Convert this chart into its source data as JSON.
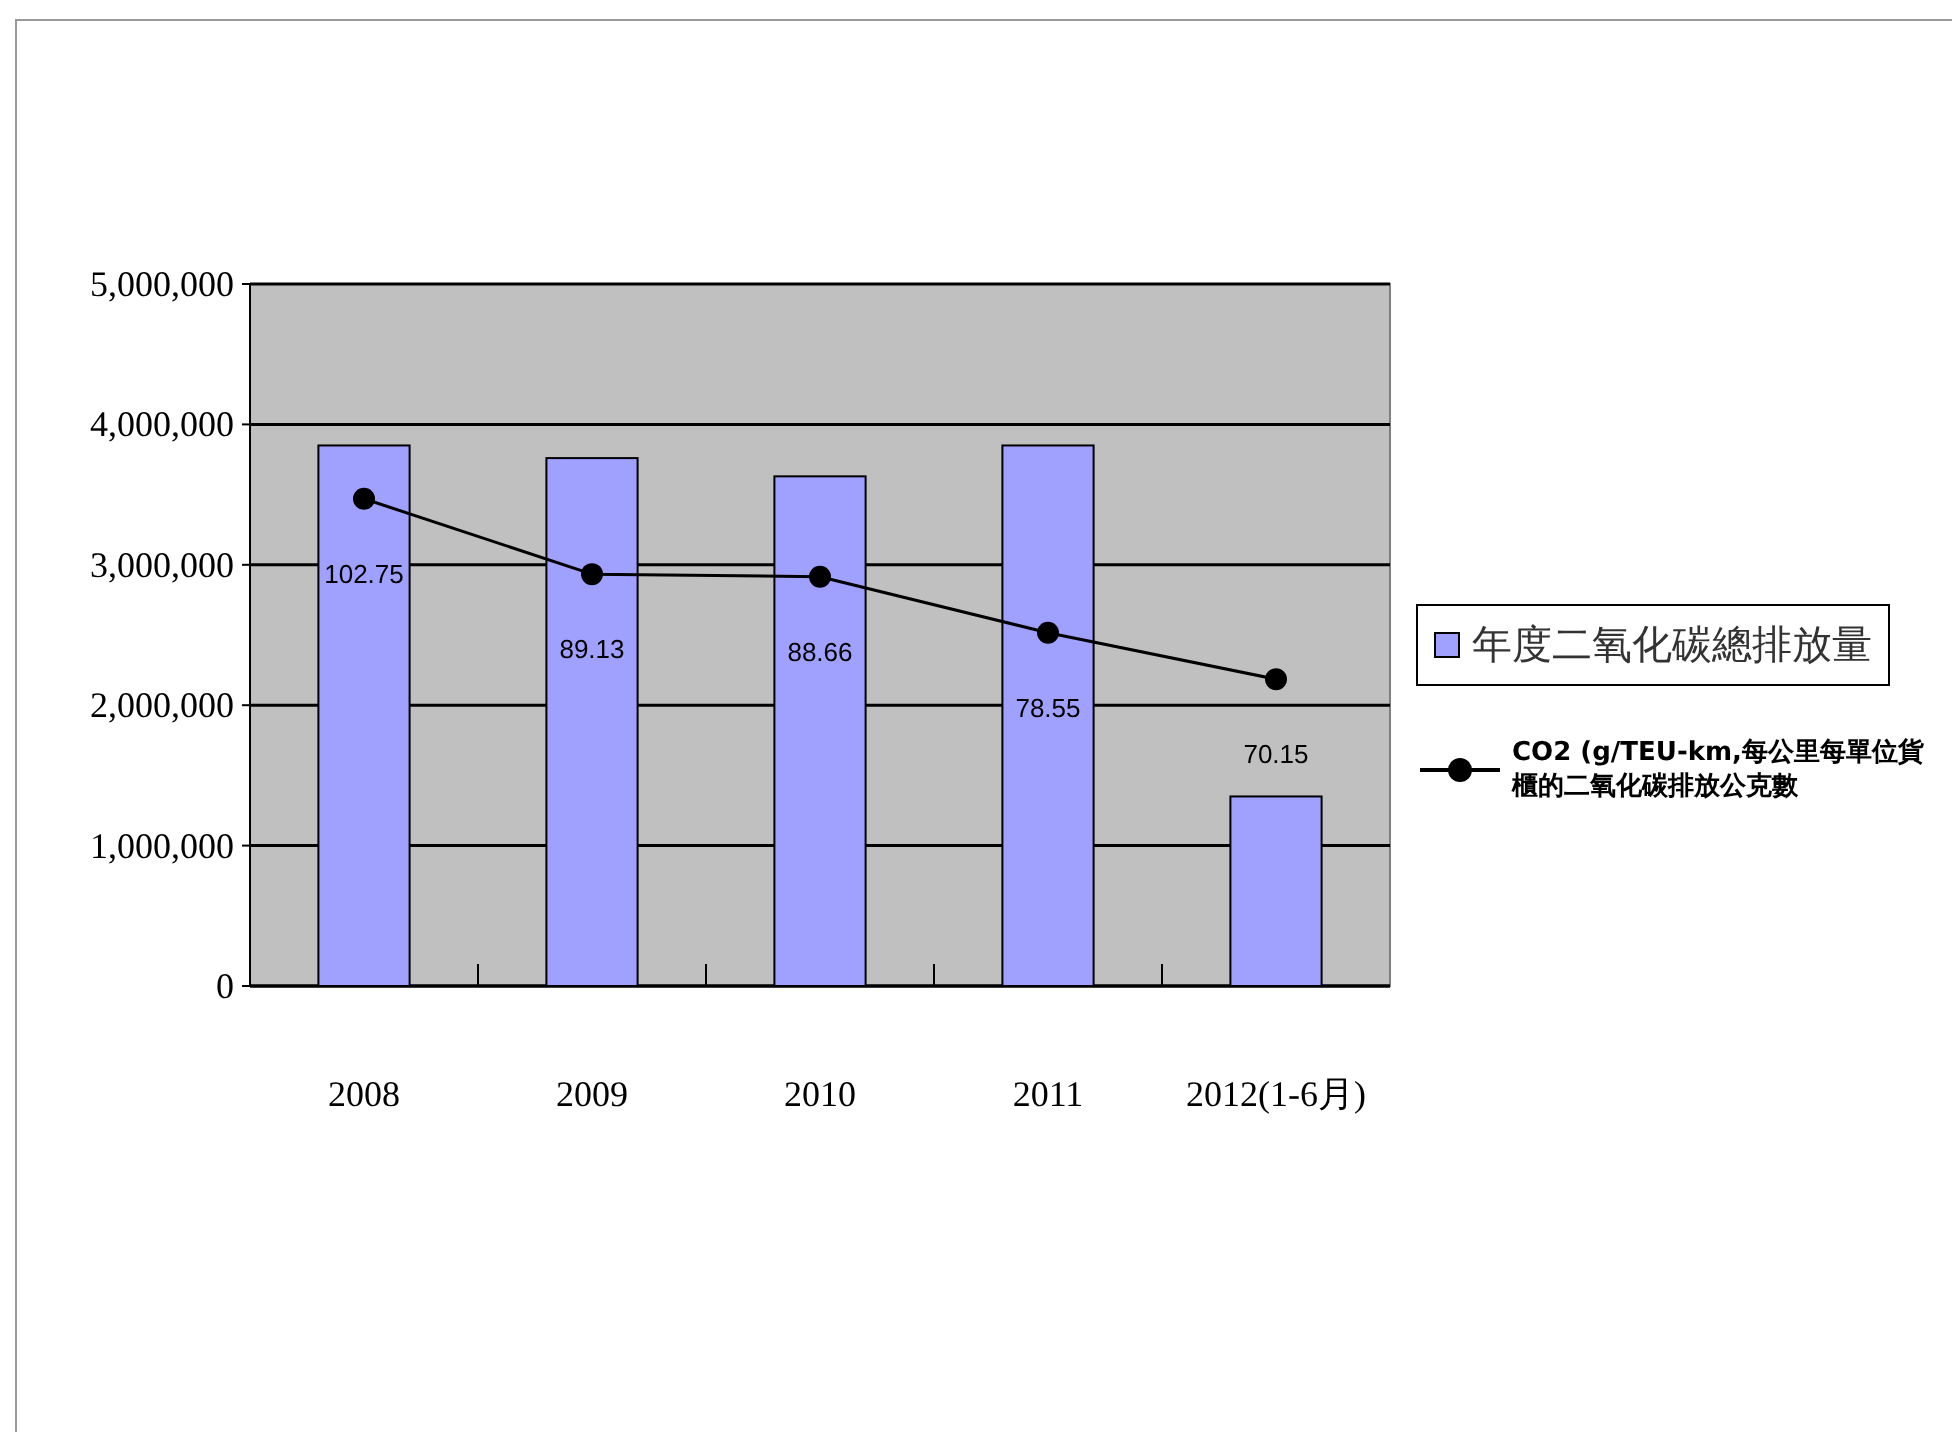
{
  "chart_data": {
    "type": "bar",
    "categories": [
      "2008",
      "2009",
      "2010",
      "2011",
      "2012(1-6月)"
    ],
    "series": [
      {
        "name": "年度二氧化碳總排放量",
        "color": "#a0a0ff",
        "values": [
          3850000,
          3760000,
          3630000,
          3850000,
          1350000
        ]
      },
      {
        "name": "CO2 (g/TEU-km,每公里每單位貨櫃的二氧化碳排放公克數",
        "type": "line",
        "axis": "y2",
        "color": "#000000",
        "marker": "circle",
        "data_labels": true,
        "values": [
          102.75,
          89.13,
          88.66,
          78.55,
          70.15
        ]
      }
    ],
    "ylim": [
      0,
      5000000
    ],
    "yticks": [
      {
        "value": 0,
        "label": "0"
      },
      {
        "value": 1000000,
        "label": "1,000,000"
      },
      {
        "value": 2000000,
        "label": "2,000,000"
      },
      {
        "value": 3000000,
        "label": "3,000,000"
      },
      {
        "value": 4000000,
        "label": "4,000,000"
      },
      {
        "value": 5000000,
        "label": "5,000,000"
      }
    ],
    "tick_labels": "xy",
    "grid": "y",
    "legend": "right"
  }
}
